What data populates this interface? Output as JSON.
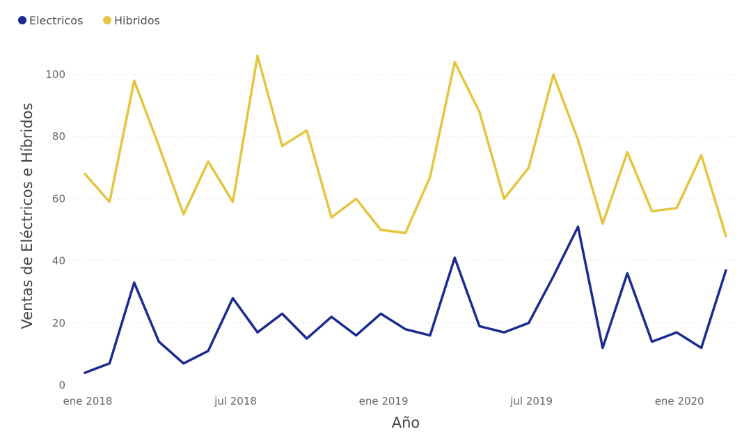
{
  "chart_data": {
    "type": "line",
    "title": "",
    "xlabel": "Año",
    "ylabel": "Ventas de Eléctricos e Híbridos",
    "ylim": [
      0,
      110
    ],
    "y_ticks": [
      0,
      20,
      40,
      60,
      80,
      100
    ],
    "x_tick_labels": [
      {
        "label": "ene 2018",
        "index": 0
      },
      {
        "label": "jul 2018",
        "index": 6
      },
      {
        "label": "ene 2019",
        "index": 12
      },
      {
        "label": "jul 2019",
        "index": 18
      },
      {
        "label": "ene 2020",
        "index": 24
      }
    ],
    "grid": true,
    "legend_position": "top-left",
    "x": [
      "2018-01",
      "2018-02",
      "2018-03",
      "2018-04",
      "2018-05",
      "2018-06",
      "2018-07",
      "2018-08",
      "2018-09",
      "2018-10",
      "2018-11",
      "2018-12",
      "2019-01",
      "2019-02",
      "2019-03",
      "2019-04",
      "2019-05",
      "2019-06",
      "2019-07",
      "2019-08",
      "2019-09",
      "2019-10",
      "2019-11",
      "2019-12",
      "2020-01",
      "2020-02",
      "2020-03"
    ],
    "series": [
      {
        "name": "Electricos",
        "color": "#1a2a8f",
        "values": [
          4,
          7,
          33,
          14,
          7,
          11,
          28,
          17,
          23,
          15,
          22,
          16,
          23,
          18,
          16,
          41,
          19,
          17,
          20,
          35,
          51,
          12,
          36,
          14,
          17,
          12,
          37
        ]
      },
      {
        "name": "Hibridos",
        "color": "#e3c53f",
        "values": [
          68,
          59,
          98,
          77,
          55,
          72,
          59,
          106,
          77,
          82,
          54,
          60,
          50,
          49,
          67,
          104,
          88,
          60,
          70,
          100,
          79,
          52,
          75,
          56,
          57,
          74,
          48
        ]
      }
    ]
  }
}
